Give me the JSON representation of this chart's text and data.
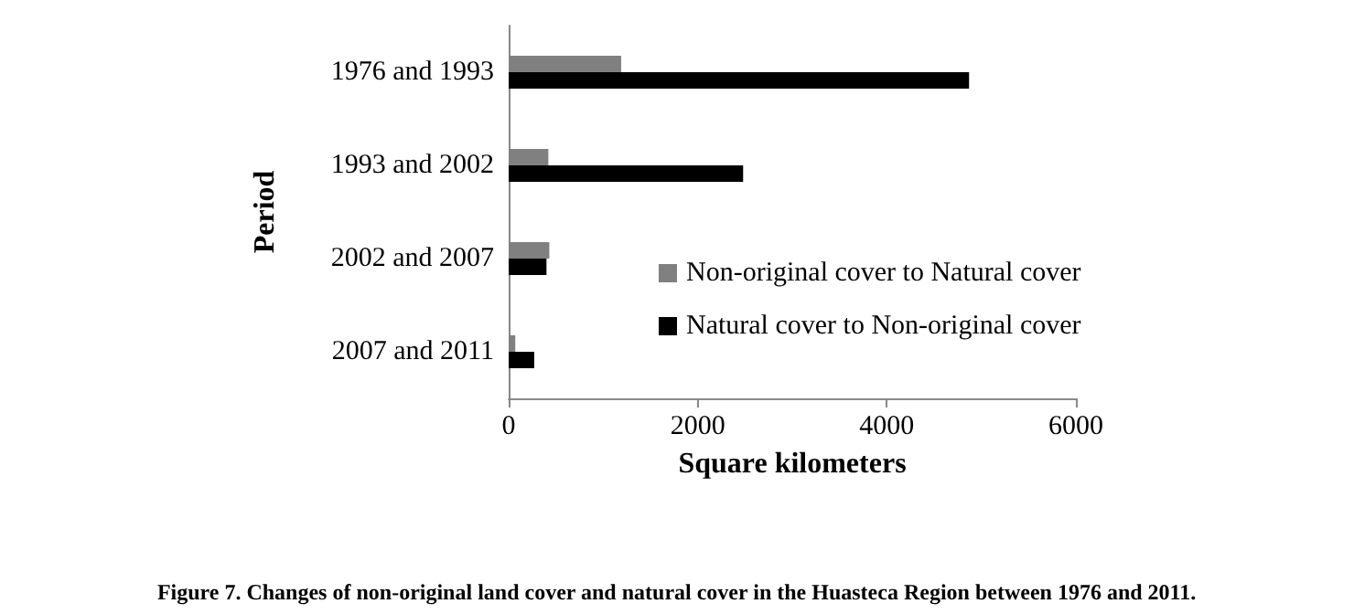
{
  "chart_data": {
    "type": "bar",
    "orientation": "horizontal",
    "xlabel": "Square kilometers",
    "ylabel": "Period",
    "categories": [
      "1976 and 1993",
      "1993 and 2002",
      "2002 and 2007",
      "2007 and 2011"
    ],
    "series": [
      {
        "name": "Non-original cover to Natural cover",
        "color": "#808080",
        "values": [
          1190,
          420,
          430,
          70
        ]
      },
      {
        "name": "Natural cover to Non-original cover",
        "color": "#000000",
        "values": [
          4870,
          2480,
          400,
          270
        ]
      }
    ],
    "xlim": [
      0,
      6000
    ],
    "xticks": [
      0,
      2000,
      4000,
      6000
    ],
    "grid": false,
    "legend": "right",
    "annotations": [
      "Figure 7. Changes of non-original land cover and natural cover in the Huasteca Region between 1976 and 2011."
    ]
  }
}
